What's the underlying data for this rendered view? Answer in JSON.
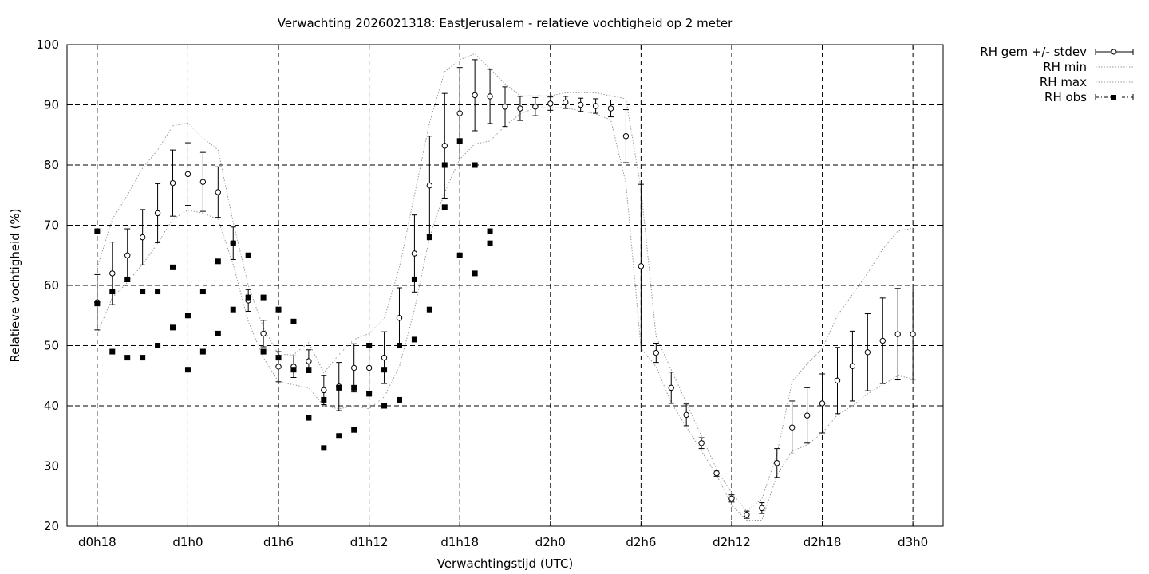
{
  "chart_data": {
    "type": "line",
    "title": "Verwachting 2026021318: EastJerusalem - relatieve vochtigheid op 2 meter",
    "xlabel": "Verwachtingstijd (UTC)",
    "ylabel": "Relatieve vochtigheid (%)",
    "xlim": [
      16,
      74
    ],
    "ylim": [
      20,
      100
    ],
    "grid": true,
    "legend_position": "outside-top-right",
    "xticks": [
      {
        "x": 18,
        "label": "d0h18"
      },
      {
        "x": 24,
        "label": "d1h0"
      },
      {
        "x": 30,
        "label": "d1h6"
      },
      {
        "x": 36,
        "label": "d1h12"
      },
      {
        "x": 42,
        "label": "d1h18"
      },
      {
        "x": 48,
        "label": "d2h0"
      },
      {
        "x": 54,
        "label": "d2h6"
      },
      {
        "x": 60,
        "label": "d2h12"
      },
      {
        "x": 66,
        "label": "d2h18"
      },
      {
        "x": 72,
        "label": "d3h0"
      }
    ],
    "yticks": [
      20,
      30,
      40,
      50,
      60,
      70,
      80,
      90,
      100
    ],
    "legend": [
      "RH gem +/- stdev",
      "RH min",
      "RH max",
      "RH obs"
    ],
    "mean_stdev": {
      "x": [
        18,
        19,
        20,
        21,
        22,
        23,
        24,
        25,
        26,
        27,
        28,
        29,
        30,
        31,
        32,
        33,
        34,
        35,
        36,
        37,
        38,
        39,
        40,
        41,
        42,
        43,
        44,
        45,
        46,
        47,
        48,
        49,
        50,
        51,
        52,
        53,
        54,
        55,
        56,
        57,
        58,
        59,
        60,
        61,
        62,
        63,
        64,
        65,
        66,
        67,
        68,
        69,
        70,
        71,
        72
      ],
      "mean": [
        57.2,
        62,
        65,
        68,
        72,
        77,
        78.5,
        77.2,
        75.5,
        67,
        57.5,
        52,
        46.5,
        46.5,
        47.4,
        42.6,
        43.2,
        46.3,
        46.3,
        48,
        54.6,
        65.3,
        76.6,
        83.2,
        88.6,
        91.6,
        91.4,
        89.7,
        89.4,
        89.7,
        90.2,
        90.4,
        90,
        89.8,
        89.4,
        84.8,
        63.2,
        48.8,
        43,
        38.5,
        33.8,
        28.8,
        24.6,
        21.9,
        23,
        30.5,
        36.4,
        38.4,
        40.4,
        44.2,
        46.6,
        48.9,
        50.8,
        51.9,
        51.9
      ],
      "stdev": [
        4.6,
        5.2,
        4.4,
        4.6,
        4.9,
        5.5,
        5.2,
        4.9,
        4.2,
        2.7,
        1.8,
        2.2,
        2.5,
        1.8,
        1.9,
        2.4,
        4.0,
        4.0,
        4.0,
        4.3,
        5.0,
        6.4,
        8.2,
        8.7,
        7.6,
        5.9,
        4.5,
        3.3,
        2.0,
        1.5,
        1.1,
        1.0,
        1.1,
        1.2,
        1.4,
        4.4,
        13.6,
        1.6,
        2.6,
        1.8,
        0.9,
        0.5,
        0.6,
        0.6,
        0.9,
        2.4,
        4.4,
        4.6,
        4.9,
        5.5,
        5.8,
        6.4,
        7.1,
        7.6,
        7.5
      ]
    },
    "min_series": {
      "x": [
        18,
        19,
        20,
        21,
        22,
        23,
        24,
        25,
        26,
        27,
        28,
        29,
        30,
        31,
        32,
        33,
        34,
        35,
        36,
        37,
        38,
        39,
        40,
        41,
        42,
        43,
        44,
        45,
        46,
        47,
        48,
        49,
        50,
        51,
        52,
        53,
        54,
        55,
        56,
        57,
        58,
        59,
        60,
        61,
        62,
        63,
        64,
        65,
        66,
        67,
        68,
        69,
        70,
        71,
        72
      ],
      "values": [
        52,
        58,
        60.5,
        63.5,
        67,
        71,
        72.5,
        72,
        71,
        63.5,
        54,
        48,
        44,
        43.5,
        43,
        40,
        39.5,
        40,
        39.5,
        41.5,
        46.5,
        56,
        68,
        75.5,
        81,
        83.5,
        84,
        86.5,
        88.5,
        89.5,
        89.5,
        89.5,
        89,
        88.5,
        87.5,
        77,
        49.5,
        46.5,
        40.5,
        36.5,
        32.5,
        28.5,
        23.5,
        21,
        21,
        28.5,
        32.5,
        33.5,
        35.5,
        38.5,
        40,
        42,
        43.5,
        45,
        44.5
      ]
    },
    "max_series": {
      "x": [
        18,
        19,
        20,
        21,
        22,
        23,
        24,
        25,
        26,
        27,
        28,
        29,
        30,
        31,
        32,
        33,
        34,
        35,
        36,
        37,
        38,
        39,
        40,
        41,
        42,
        43,
        44,
        45,
        46,
        47,
        48,
        49,
        50,
        51,
        52,
        53,
        54,
        55,
        56,
        57,
        58,
        59,
        60,
        61,
        62,
        63,
        64,
        65,
        66,
        67,
        68,
        69,
        70,
        71,
        72
      ],
      "values": [
        63,
        71,
        75,
        79.5,
        82.5,
        86.5,
        87,
        84.5,
        82.5,
        70.5,
        60,
        53,
        48.5,
        48.5,
        50.5,
        45.5,
        48.5,
        51,
        52,
        54.5,
        63,
        75,
        87,
        95.5,
        97.5,
        98.5,
        96,
        93.5,
        91.5,
        91.5,
        91.5,
        92,
        92,
        92,
        91.5,
        91,
        76,
        51.5,
        46,
        40.5,
        35,
        29.5,
        25.5,
        22.5,
        24.5,
        32,
        44,
        47,
        49.5,
        55,
        58.5,
        62,
        66,
        69,
        69.5
      ]
    },
    "observations": {
      "x": [
        18,
        18,
        19,
        19,
        20,
        20,
        21,
        21,
        22,
        22,
        23,
        23,
        24,
        24,
        25,
        25,
        26,
        26,
        27,
        27,
        28,
        28,
        29,
        29,
        30,
        30,
        31,
        31,
        32,
        32,
        33,
        33,
        34,
        34,
        35,
        35,
        36,
        36,
        37,
        37,
        38,
        38,
        39,
        39,
        40,
        40,
        41,
        41,
        42,
        42,
        43,
        43,
        44,
        44
      ],
      "values": [
        69,
        57,
        59,
        49,
        61,
        48,
        59,
        48,
        59,
        50,
        63,
        53,
        55,
        46,
        59,
        49,
        64,
        52,
        67,
        56,
        65,
        58,
        58,
        49,
        56,
        48,
        54,
        46,
        46,
        38,
        41,
        33,
        43,
        35,
        43,
        36,
        50,
        42,
        46,
        40,
        50,
        41,
        61,
        51,
        68,
        56,
        80,
        73,
        84,
        65,
        80,
        62,
        69,
        67
      ]
    }
  }
}
